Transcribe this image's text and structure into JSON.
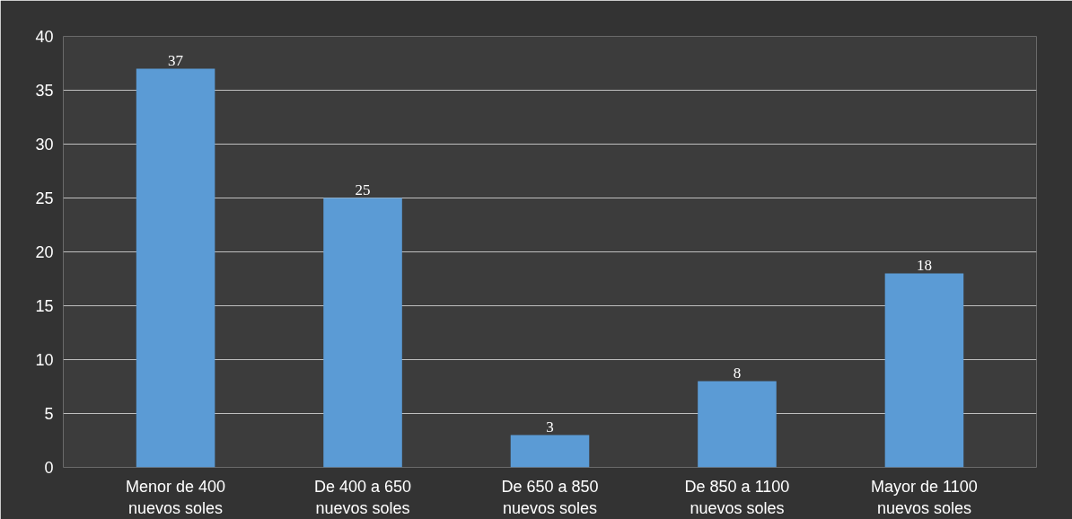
{
  "chart_data": {
    "type": "bar",
    "categories": [
      "Menor de 400\nnuevos soles",
      "De 400 a 650\nnuevos soles",
      "De 650 a 850\nnuevos soles",
      "De 850 a 1100\nnuevos soles",
      "Mayor de 1100\nnuevos soles"
    ],
    "values": [
      37,
      25,
      3,
      8,
      18
    ],
    "color": "#5b9bd5",
    "ylim": [
      0,
      40
    ],
    "yticks": [
      0,
      5,
      10,
      15,
      20,
      25,
      30,
      35,
      40
    ],
    "grid": "y",
    "data_labels": true
  }
}
